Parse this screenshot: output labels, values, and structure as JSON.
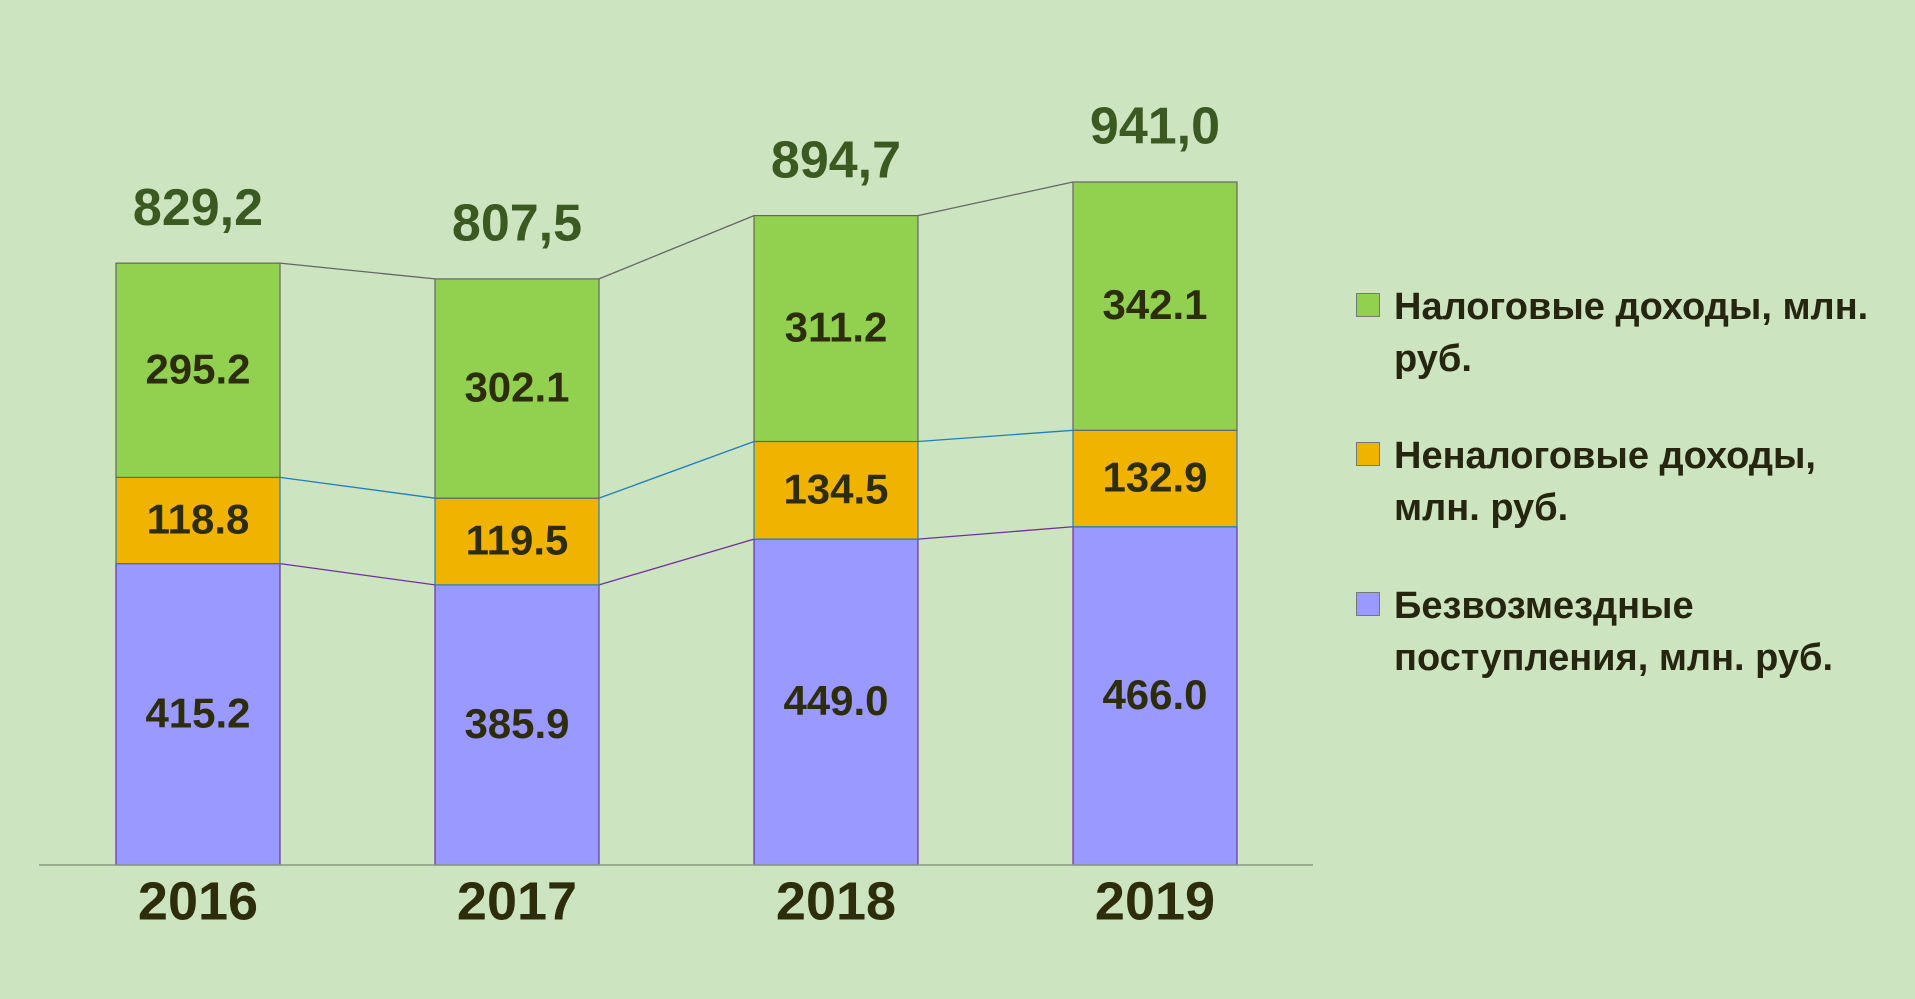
{
  "chart_data": {
    "type": "stacked_bar",
    "categories": [
      "2016",
      "2017",
      "2018",
      "2019"
    ],
    "series": [
      {
        "name": "Безвозмездные поступления, млн. руб.",
        "color": "#9999ff",
        "values": [
          415.2,
          385.9,
          449.0,
          466.0
        ],
        "value_labels": [
          "415.2",
          "385.9",
          "449.0",
          "466.0"
        ]
      },
      {
        "name": "Неналоговые доходы, млн. руб.",
        "color": "#f0b400",
        "values": [
          118.8,
          119.5,
          134.5,
          132.9
        ],
        "value_labels": [
          "118.8",
          "119.5",
          "134.5",
          "132.9"
        ]
      },
      {
        "name": "Налоговые доходы, млн. руб.",
        "color": "#92d050",
        "values": [
          295.2,
          302.1,
          311.2,
          342.1
        ],
        "value_labels": [
          "295.2",
          "302.1",
          "311.2",
          "342.1"
        ]
      }
    ],
    "totals": {
      "values": [
        829.2,
        807.5,
        894.7,
        941.0
      ],
      "value_labels": [
        "829,2",
        "807,5",
        "894,7",
        "941,0"
      ]
    }
  }
}
